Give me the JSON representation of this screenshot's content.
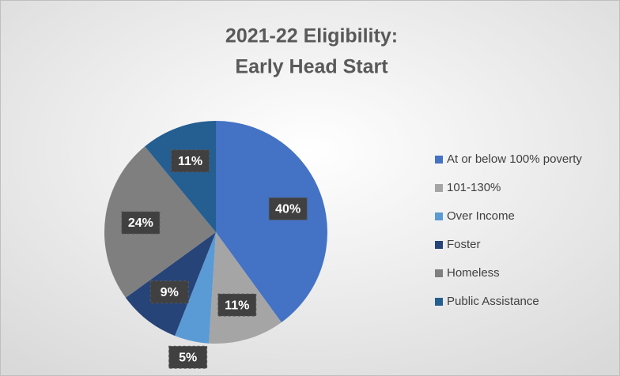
{
  "chart_data": {
    "type": "pie",
    "title": [
      "2021-22 Eligibility:",
      "Early Head Start"
    ],
    "categories": [
      "At or below 100% poverty",
      "101-130%",
      "Over Income",
      "Foster",
      "Homeless",
      "Public Assistance"
    ],
    "values": [
      40,
      11,
      5,
      9,
      24,
      11
    ],
    "value_labels": [
      "40%",
      "11%",
      "5%",
      "9%",
      "24%",
      "11%"
    ],
    "colors": [
      "#4472c4",
      "#a5a5a5",
      "#5b9bd5",
      "#264478",
      "#7f7f7f",
      "#255e91"
    ],
    "legend": "right"
  }
}
